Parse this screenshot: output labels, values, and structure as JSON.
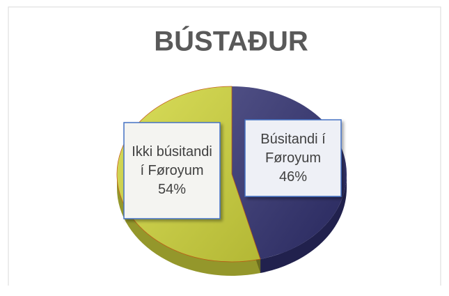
{
  "chart_data": {
    "type": "pie",
    "title": "BÚSTAÐUR",
    "categories": [
      "Búsitandi í Føroyum",
      "Ikki búsitandi í Føroyum"
    ],
    "values": [
      46,
      54
    ],
    "value_labels": [
      "46%",
      "54%"
    ],
    "colors": [
      "#2f2f6e",
      "#d3d83e"
    ]
  }
}
